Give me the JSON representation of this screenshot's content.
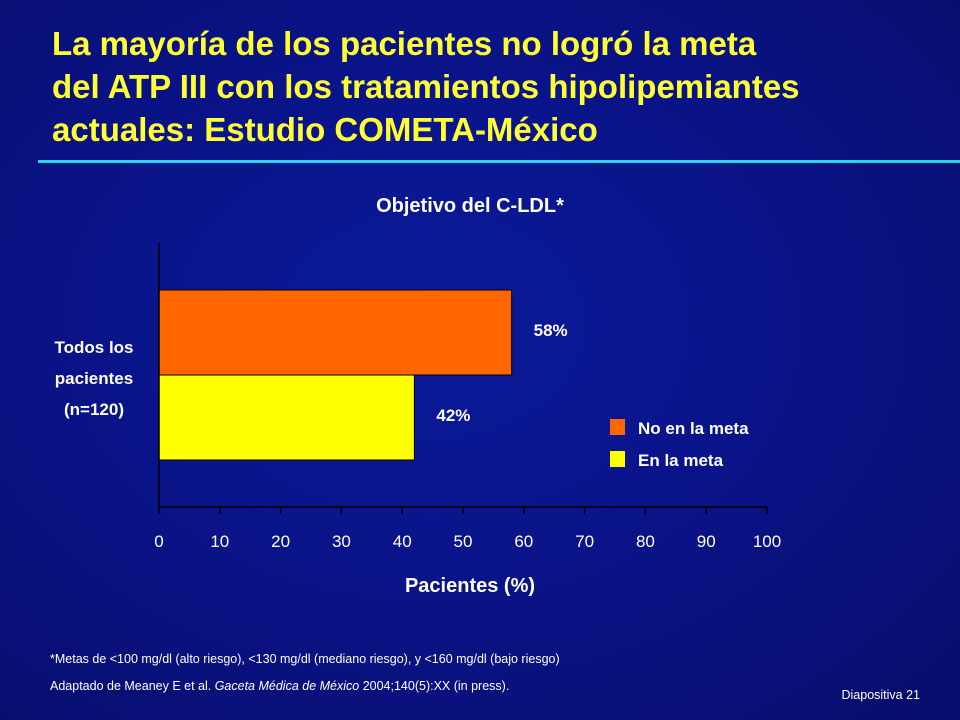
{
  "slide": {
    "title_lines": [
      "La mayoría de los pacientes no logró la meta",
      "del ATP III con los tratamientos hipolipemiantes",
      "actuales: Estudio COMETA-México"
    ],
    "footnote": "*Metas de <100 mg/dl (alto riesgo), <130 mg/dl (mediano riesgo), y <160 mg/dl (bajo riesgo)",
    "reference": {
      "prefix": "Adaptado de Meaney E et al. ",
      "journal": "Gaceta Médica de México",
      "suffix": " 2004;140(5):XX (in press)."
    },
    "slide_number": "Diapositiva 21"
  },
  "chart_data": {
    "type": "bar",
    "orientation": "horizontal",
    "title": "Objetivo del C-LDL*",
    "xlabel": "Pacientes (%)",
    "ylabel": "",
    "category_label_lines": [
      "Todos los",
      "pacientes",
      "(n=120)"
    ],
    "xlim": [
      0,
      100
    ],
    "xticks": [
      0,
      10,
      20,
      30,
      40,
      50,
      60,
      70,
      80,
      90,
      100
    ],
    "grid": false,
    "legend_position": "right",
    "series": [
      {
        "name": "No en la meta",
        "values": [
          58
        ],
        "color": "#ff6600",
        "data_label": "58%"
      },
      {
        "name": "En la meta",
        "values": [
          42
        ],
        "color": "#ffff00",
        "data_label": "42%"
      }
    ]
  }
}
